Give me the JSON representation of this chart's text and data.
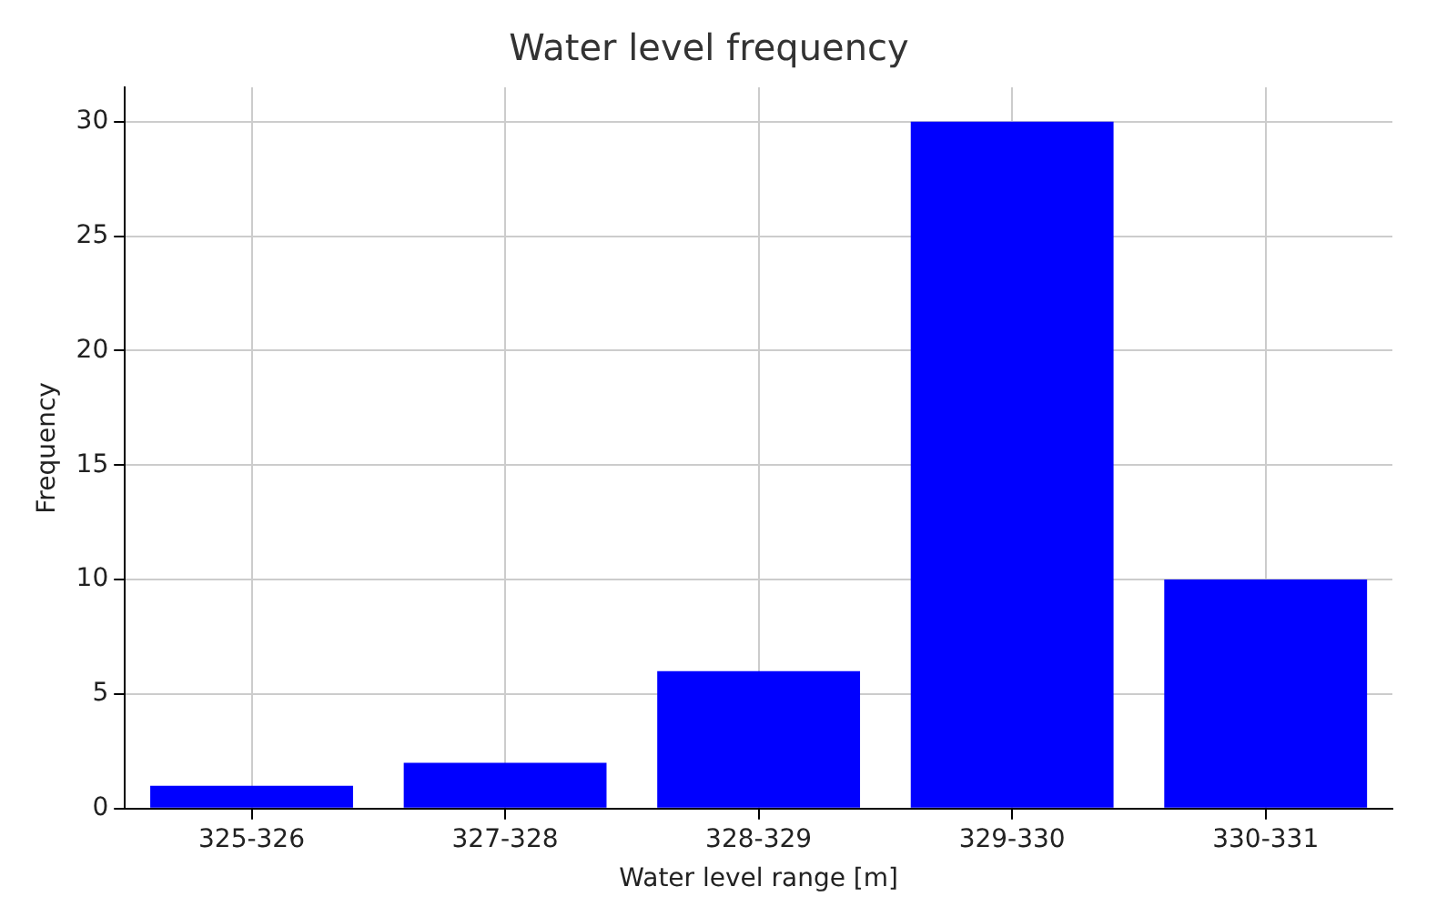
{
  "chart_data": {
    "type": "bar",
    "title": "Water level frequency",
    "xlabel": "Water level range [m]",
    "ylabel": "Frequency",
    "categories": [
      "325-326",
      "327-328",
      "328-329",
      "329-330",
      "330-331"
    ],
    "values": [
      1,
      2,
      6,
      30,
      10
    ],
    "color": "#0000ff",
    "ylim": [
      0,
      31.5
    ],
    "yticks": [
      0,
      5,
      10,
      15,
      20,
      25,
      30
    ],
    "grid": true
  }
}
